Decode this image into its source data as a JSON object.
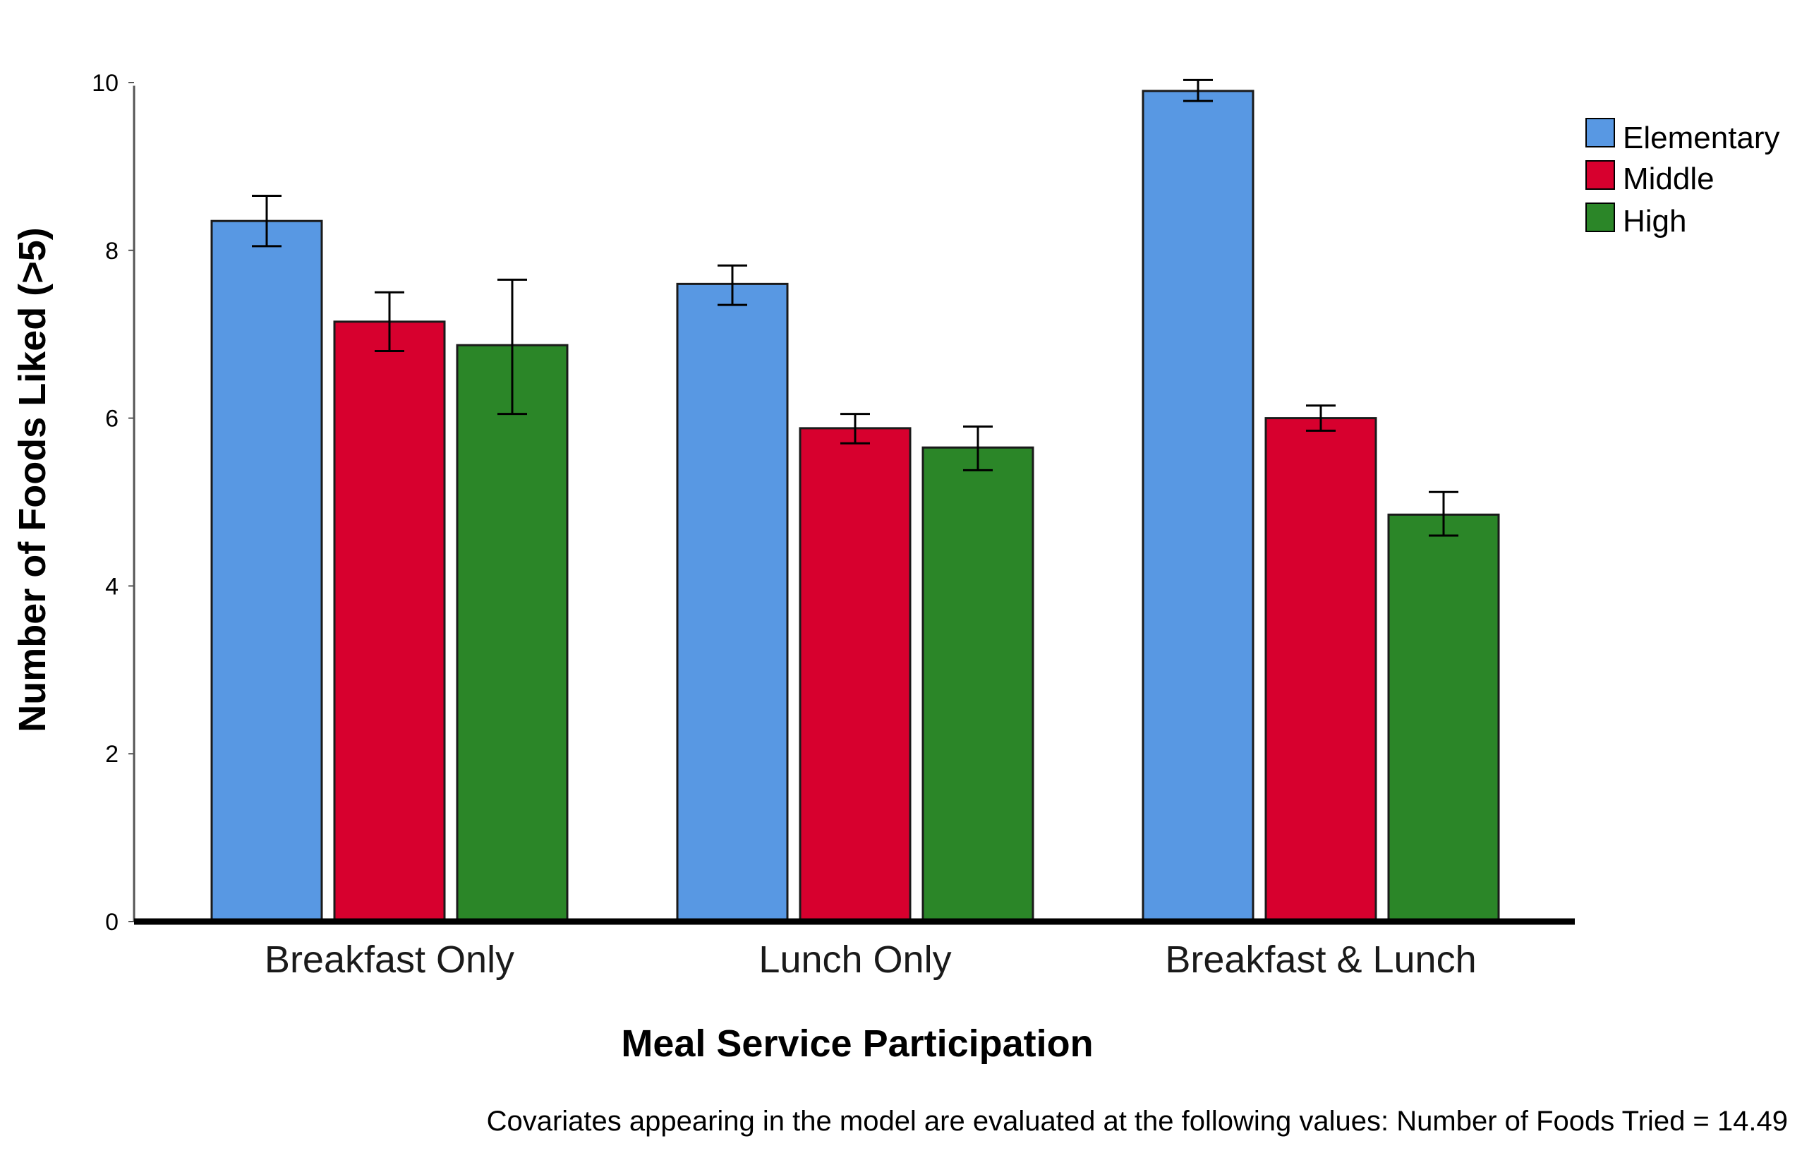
{
  "chart_data": {
    "type": "bar",
    "title": "",
    "xlabel": "Meal Service Participation",
    "ylabel": "Number of Foods Liked (>5)",
    "ylim": [
      0,
      10.5
    ],
    "yticks": [
      0,
      2,
      4,
      6,
      8,
      10
    ],
    "ytick_labels": [
      "0",
      "2",
      "4",
      "6",
      "8",
      "10"
    ],
    "categories": [
      "Breakfast Only",
      "Lunch Only",
      "Breakfast & Lunch"
    ],
    "series": [
      {
        "name": "Elementary",
        "color": "#5898e3",
        "values": [
          8.35,
          7.6,
          9.9
        ],
        "error_low": [
          8.05,
          7.35,
          9.78
        ],
        "error_high": [
          8.65,
          7.82,
          10.03
        ]
      },
      {
        "name": "Middle",
        "color": "#d7002e",
        "values": [
          7.15,
          5.88,
          6.0
        ],
        "error_low": [
          6.8,
          5.7,
          5.85
        ],
        "error_high": [
          7.5,
          6.05,
          6.15
        ]
      },
      {
        "name": "High",
        "color": "#2b8628",
        "values": [
          6.87,
          5.65,
          4.85
        ],
        "error_low": [
          6.05,
          5.38,
          4.6
        ],
        "error_high": [
          7.65,
          5.9,
          5.12
        ]
      }
    ],
    "legend": {
      "position": "top-right",
      "entries": [
        "Elementary",
        "Middle",
        "High"
      ]
    },
    "grid": false
  },
  "footnote": "Covariates appearing in the model are evaluated at the following values: Number of Foods Tried = 14.49"
}
